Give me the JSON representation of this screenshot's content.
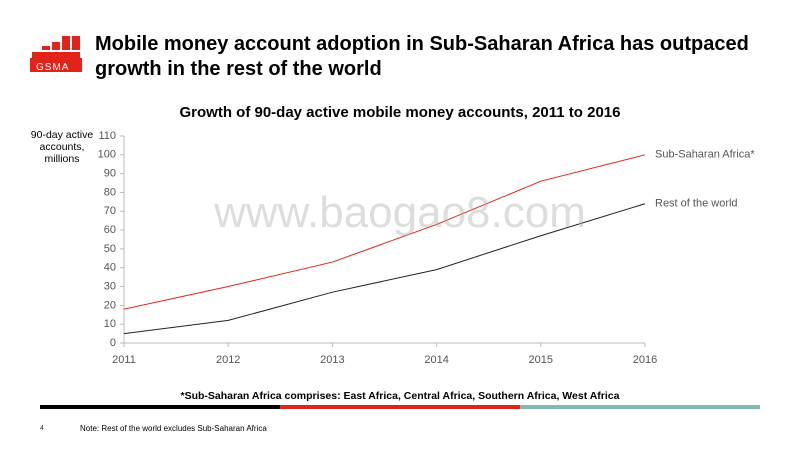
{
  "header": {
    "logo": "GSMA",
    "title": "Mobile money account adoption in Sub-Saharan Africa has outpaced growth in the rest of the world"
  },
  "chart_data": {
    "type": "line",
    "title": "Growth of 90-day active mobile money accounts, 2011 to 2016",
    "y_label": "90-day active accounts, millions",
    "x": [
      2011,
      2012,
      2013,
      2014,
      2015,
      2016
    ],
    "xlim": [
      2011,
      2016
    ],
    "xticks": [
      2011,
      2012,
      2013,
      2014,
      2015,
      2016
    ],
    "ylim": [
      0,
      110
    ],
    "yticks": [
      0,
      10,
      20,
      30,
      40,
      50,
      60,
      70,
      80,
      90,
      100,
      110
    ],
    "grid": false,
    "series": [
      {
        "name": "Sub-Saharan Africa*",
        "color": "#e2231a",
        "values": [
          18,
          30,
          43,
          63,
          86,
          100
        ]
      },
      {
        "name": "Rest of the world",
        "color": "#222222",
        "values": [
          5,
          12,
          27,
          39,
          57,
          74
        ]
      }
    ]
  },
  "watermark": "www.baogao8.com",
  "footnote": "*Sub-Saharan Africa comprises: East Africa, Central Africa, Southern Africa, West Africa",
  "page_number": "4",
  "note": "Note: Rest of the world excludes Sub-Saharan Africa"
}
